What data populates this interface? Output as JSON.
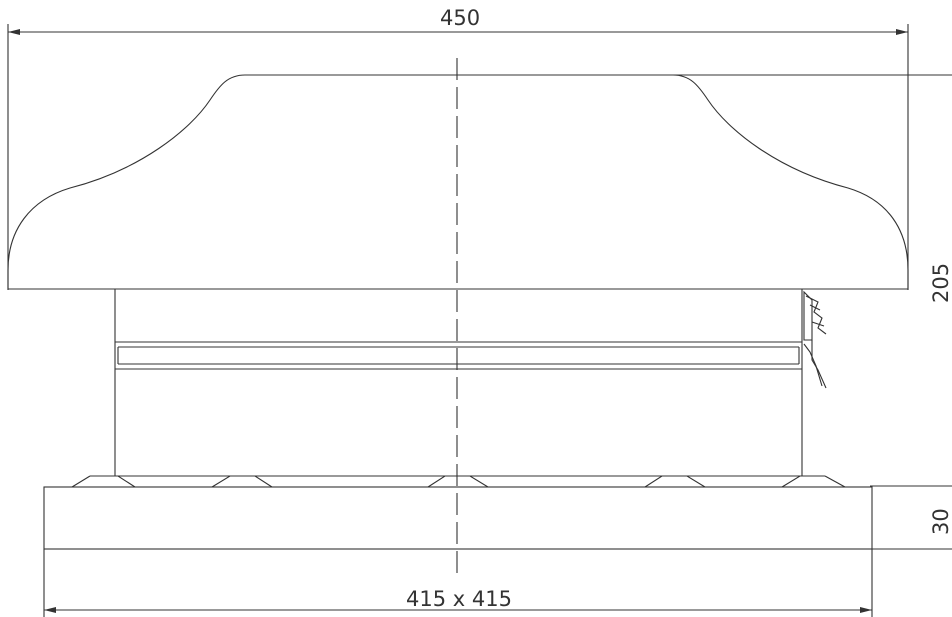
{
  "dimensions": {
    "overall_width": "450",
    "base_size": "415 x 415",
    "total_height": "205",
    "base_height": "30"
  },
  "colors": {
    "line": "#333333",
    "background": "#ffffff"
  }
}
